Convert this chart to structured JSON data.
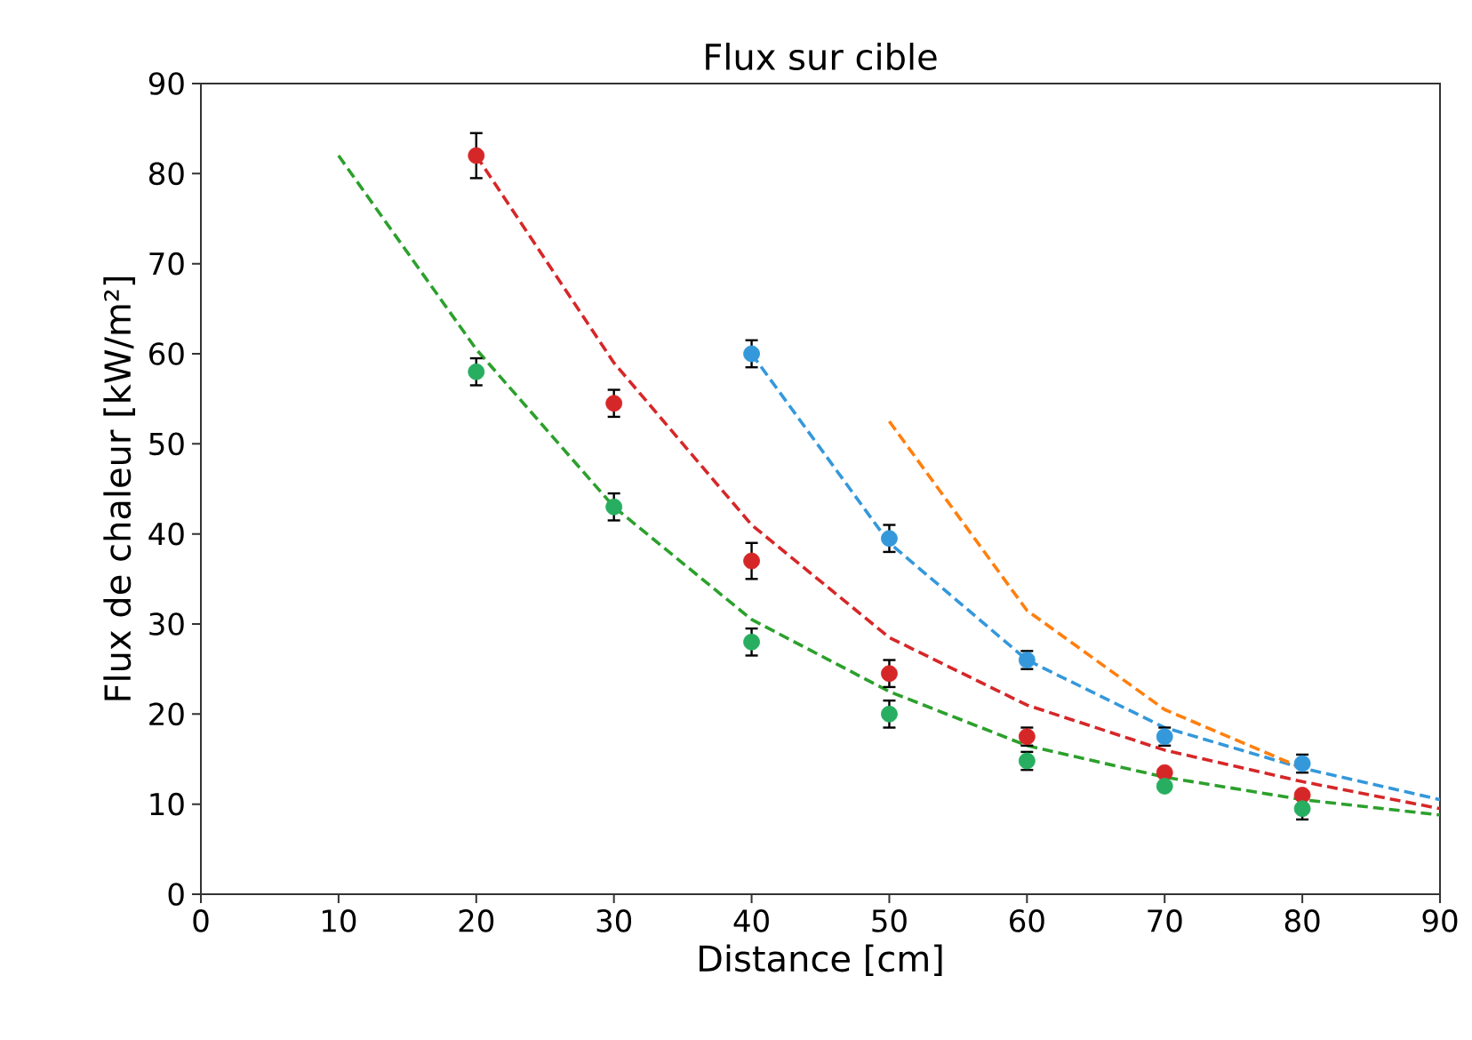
{
  "chart_data": {
    "type": "scatter",
    "title": "Flux sur cible",
    "xlabel": "Distance [cm]",
    "ylabel": "Flux de chaleur [kW/m²]",
    "xlim": [
      0,
      90
    ],
    "ylim": [
      0,
      90
    ],
    "xticks": [
      0,
      10,
      20,
      30,
      40,
      50,
      60,
      70,
      80,
      90
    ],
    "yticks": [
      0,
      10,
      20,
      30,
      40,
      50,
      60,
      70,
      80,
      90
    ],
    "series": [
      {
        "type": "line",
        "line_style": "dashed",
        "marker": "none",
        "color": "#2ca02c",
        "x": [
          10,
          20,
          30,
          40,
          50,
          60,
          70,
          80,
          90
        ],
        "values": [
          82,
          60.5,
          43,
          30.5,
          22.5,
          16.5,
          13,
          10.5,
          8.8
        ]
      },
      {
        "type": "line",
        "line_style": "dashed",
        "marker": "none",
        "color": "#d62728",
        "x": [
          20,
          30,
          40,
          50,
          60,
          70,
          80,
          90
        ],
        "values": [
          82,
          59,
          41,
          28.5,
          21,
          16,
          12.5,
          9.5
        ]
      },
      {
        "type": "line",
        "line_style": "dashed",
        "marker": "none",
        "color": "#3498db",
        "x": [
          40,
          50,
          60,
          70,
          80,
          90
        ],
        "values": [
          60,
          39,
          26,
          18.5,
          14,
          10.5
        ]
      },
      {
        "type": "line",
        "line_style": "dashed",
        "marker": "none",
        "color": "#ff7f0e",
        "x": [
          50,
          60,
          70,
          80
        ],
        "values": [
          52.5,
          31.5,
          20.5,
          14
        ]
      },
      {
        "marker": "circle",
        "color": "#d62728",
        "x": [
          20,
          30,
          40,
          50,
          60,
          70,
          80
        ],
        "values": [
          82,
          54.5,
          37,
          24.5,
          17.5,
          13.5,
          11
        ],
        "errors": [
          2.5,
          1.5,
          2,
          1.5,
          1,
          null,
          null
        ]
      },
      {
        "marker": "circle",
        "color": "#27ae60",
        "x": [
          20,
          30,
          40,
          50,
          60,
          70,
          80
        ],
        "values": [
          58,
          43,
          28,
          20,
          14.8,
          12,
          9.5
        ],
        "errors": [
          1.5,
          1.5,
          1.5,
          1.5,
          1,
          null,
          1.2
        ]
      },
      {
        "marker": "circle",
        "color": "#3498db",
        "x": [
          40,
          50,
          60,
          70,
          80
        ],
        "values": [
          60,
          39.5,
          26,
          17.5,
          14.5
        ],
        "errors": [
          1.5,
          1.5,
          1,
          1,
          1
        ]
      }
    ]
  }
}
